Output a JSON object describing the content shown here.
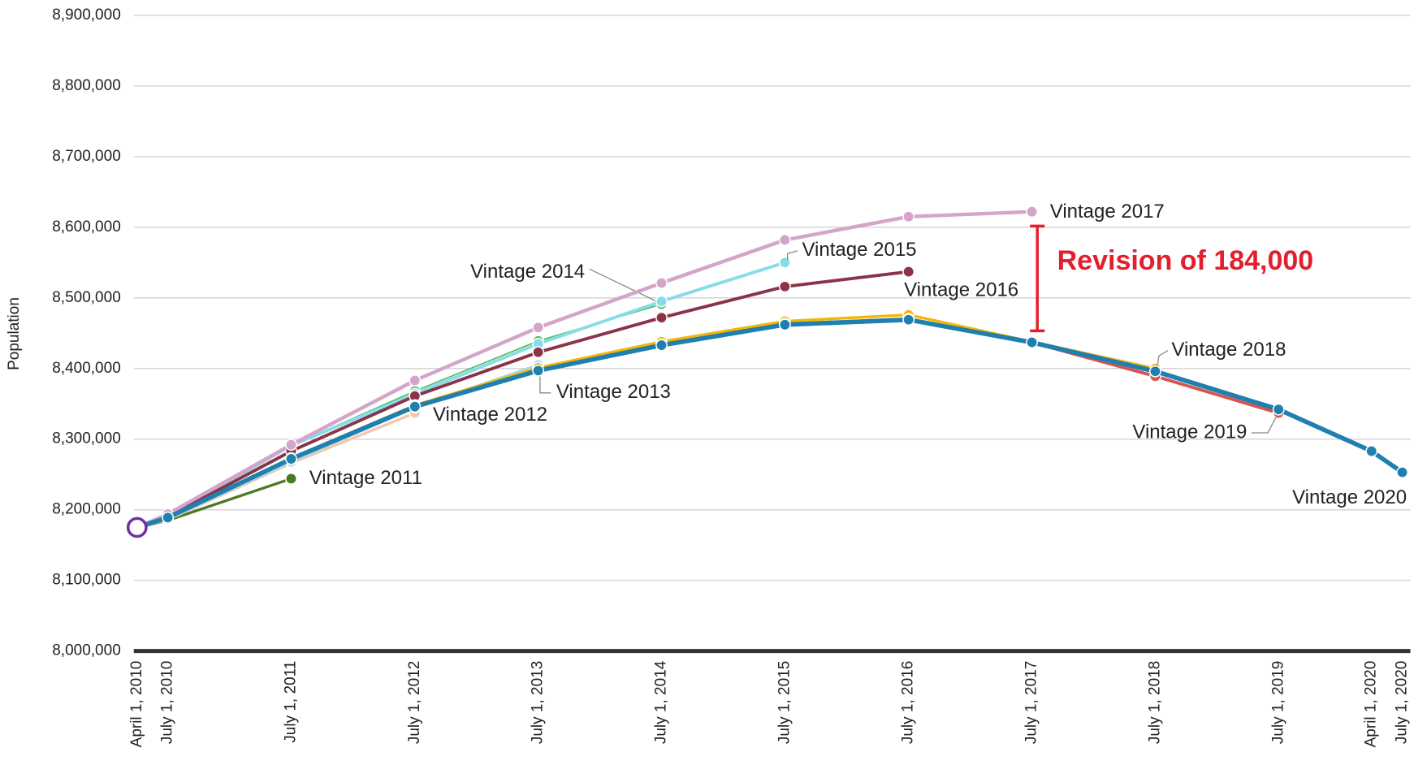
{
  "chart_data": {
    "type": "line",
    "y_label": "Population",
    "x": [
      "April 1, 2010",
      "July 1, 2010",
      "July 1, 2011",
      "July 1, 2012",
      "July 1, 2013",
      "July 1, 2014",
      "July 1, 2015",
      "July 1, 2016",
      "July 1, 2017",
      "July 1, 2018",
      "July 1, 2019",
      "April 1, 2020",
      "July 1, 2020"
    ],
    "xlim": [
      "April 1, 2010",
      "July 1, 2020"
    ],
    "ylim": [
      8000000,
      8900000
    ],
    "yticks": [
      {
        "value": 8000000,
        "label": "8,000,000"
      },
      {
        "value": 8100000,
        "label": "8,100,000"
      },
      {
        "value": 8200000,
        "label": "8,200,000"
      },
      {
        "value": 8300000,
        "label": "8,300,000"
      },
      {
        "value": 8400000,
        "label": "8,400,000"
      },
      {
        "value": 8500000,
        "label": "8,500,000"
      },
      {
        "value": 8600000,
        "label": "8,600,000"
      },
      {
        "value": 8700000,
        "label": "8,700,000"
      },
      {
        "value": 8800000,
        "label": "8,800,000"
      },
      {
        "value": 8900000,
        "label": "8,900,000"
      }
    ],
    "grid": true,
    "census_base": {
      "x": "April 1, 2010",
      "value": 8175000,
      "color": "#7030a0"
    },
    "series": [
      {
        "name": "Vintage 2011",
        "color": "#4a7a23",
        "width": 3,
        "values": [
          8175000,
          8185000,
          8244000,
          null,
          null,
          null,
          null,
          null,
          null,
          null,
          null,
          null,
          null
        ]
      },
      {
        "name": "Vintage 2012",
        "color": "#f4c7a8",
        "width": 3,
        "values": [
          8175000,
          8186000,
          8266000,
          8337000,
          null,
          null,
          null,
          null,
          null,
          null,
          null,
          null,
          null
        ]
      },
      {
        "name": "Vintage 2013",
        "color": "#a9d8ec",
        "width": 3,
        "values": [
          8175000,
          8187000,
          8268000,
          8345000,
          8405000,
          null,
          null,
          null,
          null,
          null,
          null,
          null,
          null
        ]
      },
      {
        "name": "Vintage 2014",
        "color": "#4dbb5f",
        "width": 1.5,
        "values": [
          8175000,
          8190000,
          8291000,
          8368000,
          8439000,
          8491000,
          null,
          null,
          null,
          null,
          null,
          null,
          null
        ]
      },
      {
        "name": "Vintage 2015",
        "color": "#86dde9",
        "width": 3.5,
        "values": [
          8175000,
          8190000,
          8291000,
          8364000,
          8435000,
          8495000,
          8550000,
          null,
          null,
          null,
          null,
          null,
          null
        ]
      },
      {
        "name": "Vintage 2016",
        "color": "#8b3347",
        "width": 3.5,
        "values": [
          8175000,
          8190000,
          8283000,
          8361000,
          8423000,
          8472000,
          8516000,
          8537000,
          null,
          null,
          null,
          null,
          null
        ]
      },
      {
        "name": "Vintage 2017",
        "color": "#d4a5c9",
        "width": 4,
        "values": [
          8175000,
          8194000,
          8292000,
          8383000,
          8458000,
          8521000,
          8582000,
          8615000,
          8622000,
          null,
          null,
          null,
          null
        ]
      },
      {
        "name": "Vintage 2018",
        "color": "#f2b705",
        "width": 3,
        "values": [
          8175000,
          8189000,
          8273000,
          8348000,
          8401000,
          8438000,
          8467000,
          8476000,
          8438000,
          8400000,
          null,
          null,
          null
        ]
      },
      {
        "name": "Vintage 2019",
        "color": "#d9534f",
        "width": 3.5,
        "values": [
          8175000,
          8189000,
          8272000,
          8346000,
          8397000,
          8434000,
          8463000,
          8470000,
          8437000,
          8389000,
          8337000,
          null,
          null
        ]
      },
      {
        "name": "Vintage 2020",
        "color": "#1f7fae",
        "width": 5,
        "values": [
          8175000,
          8189000,
          8272000,
          8346000,
          8397000,
          8433000,
          8462000,
          8469000,
          8437000,
          8396000,
          8342000,
          8283000,
          8253000
        ]
      }
    ],
    "annotation": {
      "text": "Revision of 184,000",
      "x": "July 1, 2017",
      "from": 8622000,
      "to": 8438000,
      "color": "#e31e2d"
    }
  }
}
